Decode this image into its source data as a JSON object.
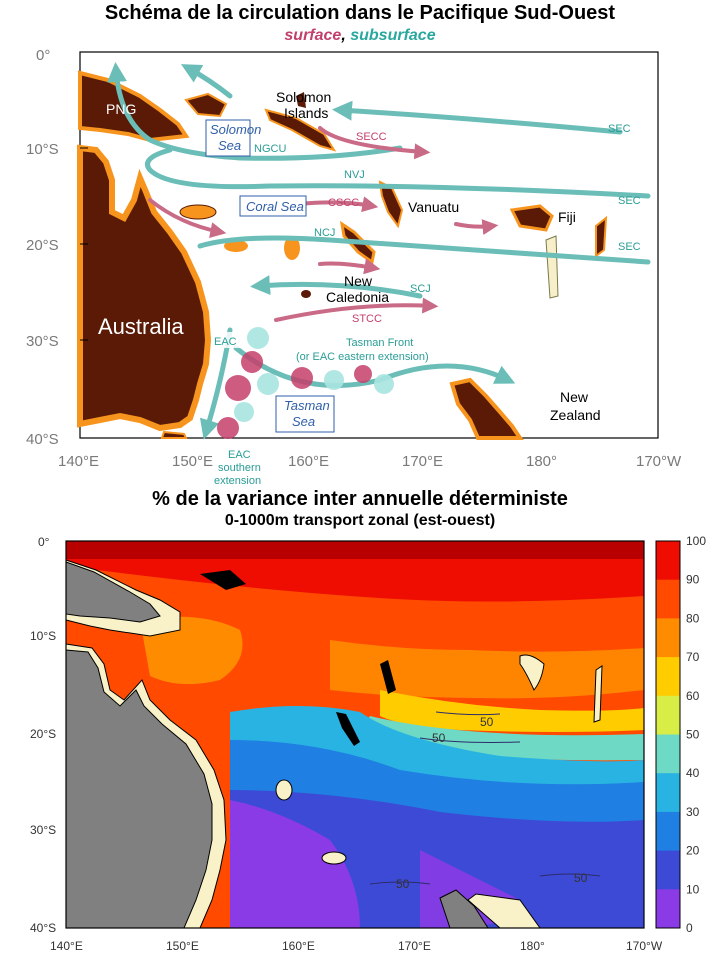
{
  "top_map": {
    "title": "Schéma de la circulation dans le Pacifique Sud-Ouest",
    "subtitle_surface": "surface",
    "subtitle_sep": ", ",
    "subtitle_subsurface": "subsurface",
    "y_ticks": [
      "0°",
      "10°S",
      "20°S",
      "30°S",
      "40°S"
    ],
    "x_ticks": [
      "140°E",
      "150°E",
      "160°E",
      "170°E",
      "180°",
      "170°W"
    ],
    "land_labels": {
      "png": "PNG",
      "solomon": [
        "Solomon",
        "Islands"
      ],
      "vanuatu": "Vanuatu",
      "fiji": "Fiji",
      "new_caledonia": [
        "New",
        "Caledonia"
      ],
      "australia": "Australia",
      "new_zealand": [
        "New",
        "Zealand"
      ]
    },
    "sea_labels": {
      "solomon_sea": [
        "Solomon",
        "Sea"
      ],
      "coral_sea": "Coral Sea",
      "tasman_sea": [
        "Tasman",
        "Sea"
      ]
    },
    "current_labels": {
      "ngcu": "NGCU",
      "sec_1": "SEC",
      "sec_2": "SEC",
      "sec_3": "SEC",
      "nvj": "NVJ",
      "ncj": "NCJ",
      "scj": "SCJ",
      "secc": "SECC",
      "cscc": "CSCC",
      "stcc": "STCC",
      "eac": "EAC",
      "tasman_front": [
        "Tasman Front",
        "(or EAC eastern extension)"
      ],
      "eac_south": [
        "EAC",
        "southern",
        "extension"
      ]
    },
    "colors": {
      "land": "#5a1a06",
      "shelf": "#f7941d",
      "surface": "#c2416b",
      "subsurface": "#2aa79f"
    }
  },
  "bottom_map": {
    "title": "% de la variance inter annuelle déterministe",
    "subtitle": "0-1000m transport zonal (est-ouest)",
    "y_ticks": [
      "0°",
      "10°S",
      "20°S",
      "30°S",
      "40°S"
    ],
    "x_ticks": [
      "140°E",
      "150°E",
      "160°E",
      "170°E",
      "180°",
      "170°W"
    ],
    "contour_labels": [
      "50",
      "50",
      "50",
      "50"
    ],
    "colorbar": {
      "ticks": [
        "100",
        "90",
        "80",
        "70",
        "60",
        "50",
        "40",
        "30",
        "20",
        "10",
        "0"
      ],
      "colors": [
        "#b80000",
        "#ee0d00",
        "#ff4a00",
        "#ff8c00",
        "#ffcc00",
        "#d8ee46",
        "#6ed9c4",
        "#29b3e2",
        "#1f7fe3",
        "#3d4ad6",
        "#8a3be6"
      ]
    }
  }
}
